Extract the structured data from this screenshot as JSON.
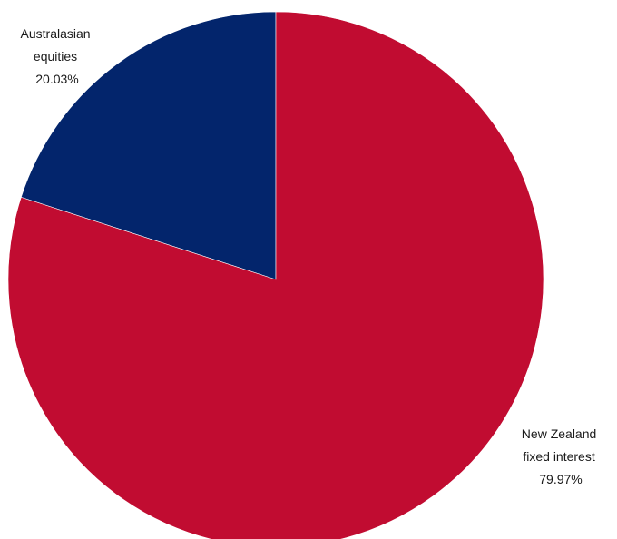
{
  "chart_data": {
    "type": "pie",
    "categories": [
      "Australasian equities",
      "New Zealand fixed interest"
    ],
    "values": [
      20.03,
      79.97
    ],
    "colors": [
      "#03256C",
      "#C10C31"
    ],
    "labels": [
      {
        "lines": [
          "Australasian",
          "equities",
          "20.03%"
        ]
      },
      {
        "lines": [
          "New Zealand",
          "fixed interest",
          "79.97%"
        ]
      }
    ],
    "start_angle": "12 o'clock",
    "direction": "counterclockwise for first slice",
    "legend": "none"
  }
}
